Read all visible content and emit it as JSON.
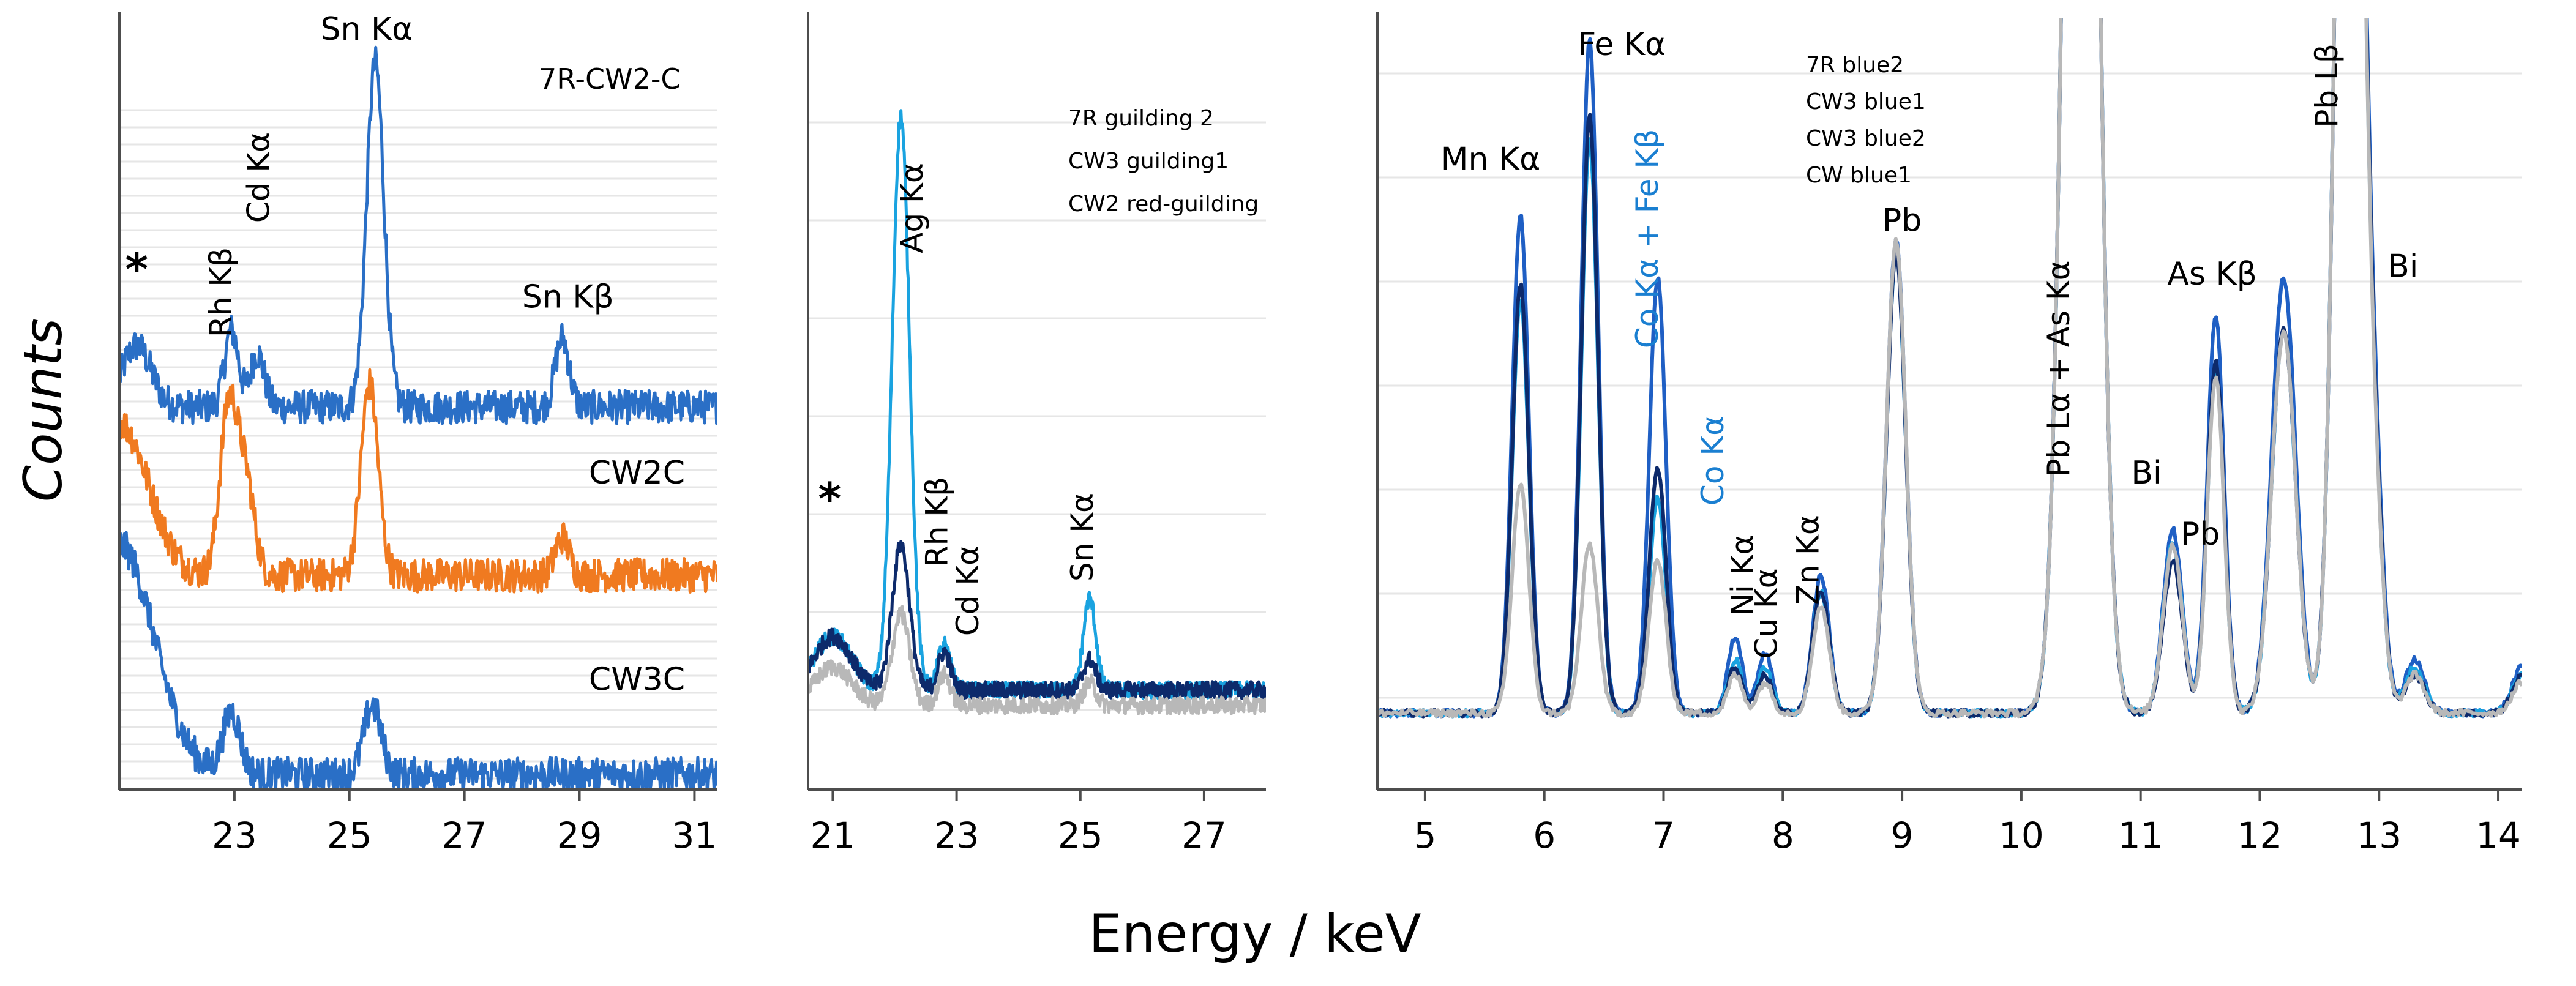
{
  "figure": {
    "ylabel": "Counts",
    "xlabel": "Energy / keV",
    "colors": {
      "blue": "#2a6fc6",
      "orange": "#f07a20",
      "navy": "#0d2a6b",
      "mid_blue": "#1f5fc4",
      "light_blue": "#1aa3e0",
      "grey": "#b8b8b8",
      "co_label": "#1a7fd1",
      "grid": "#e6e6e6",
      "axis": "#4d4d4d"
    }
  },
  "chart_data": [
    {
      "type": "line",
      "title": "7R-CW2-C",
      "xlabel": "",
      "ylabel": "Counts",
      "xlim": [
        21.0,
        31.4
      ],
      "ylim": [
        0,
        100
      ],
      "x_ticks": [
        23,
        25,
        27,
        29,
        31
      ],
      "grid": "horizontal",
      "legend": "none",
      "series": [
        {
          "name": "7R-CW2-C",
          "color": "blue",
          "baseline": 50,
          "peaks": [
            [
              21.3,
              8,
              0.25
            ],
            [
              22.95,
              10,
              0.12
            ],
            [
              23.4,
              7,
              0.12
            ],
            [
              25.45,
              45,
              0.15
            ],
            [
              28.7,
              9,
              0.12
            ]
          ]
        },
        {
          "name": "CW2C",
          "color": "orange",
          "baseline": 28,
          "peaks": [
            [
              21.0,
              20,
              0.5
            ],
            [
              22.9,
              22,
              0.15
            ],
            [
              23.2,
              12,
              0.15
            ],
            [
              25.35,
              25,
              0.15
            ],
            [
              28.7,
              5,
              0.12
            ]
          ]
        },
        {
          "name": "CW3C",
          "color": "blue",
          "baseline": 2,
          "peaks": [
            [
              21.0,
              30,
              0.6
            ],
            [
              22.95,
              8,
              0.15
            ],
            [
              25.4,
              9,
              0.15
            ]
          ]
        }
      ],
      "annotations": [
        {
          "text": "Sn Kα",
          "x": 25.3,
          "y": 98
        },
        {
          "text": "Cd Kα",
          "x": 23.6,
          "y": 80,
          "rotate": true
        },
        {
          "text": "Rh Kβ",
          "x": 22.95,
          "y": 65,
          "rotate": true
        },
        {
          "text": "Sn Kβ",
          "x": 28.8,
          "y": 63
        },
        {
          "text": "*",
          "x": 21.3,
          "y": 66
        },
        {
          "text": "CW2C",
          "x": 30.0,
          "y": 40
        },
        {
          "text": "CW3C",
          "x": 30.0,
          "y": 13
        }
      ]
    },
    {
      "type": "line",
      "title": "",
      "xlabel": "",
      "ylabel": "",
      "xlim": [
        20.6,
        28.0
      ],
      "ylim": [
        0,
        100
      ],
      "x_ticks": [
        21,
        23,
        25,
        27
      ],
      "grid": "horizontal",
      "legend": "top-right",
      "legend_items": [
        "7R guilding 2",
        "CW3 guilding1",
        "CW2 red-guilding"
      ],
      "series": [
        {
          "name": "7R guilding 2",
          "color": "light_blue",
          "baseline": 13,
          "peaks": [
            [
              21.0,
              7,
              0.3
            ],
            [
              22.1,
              75,
              0.14
            ],
            [
              22.8,
              6,
              0.1
            ],
            [
              25.15,
              12,
              0.1
            ]
          ]
        },
        {
          "name": "CW3 guilding1",
          "color": "navy",
          "baseline": 13,
          "peaks": [
            [
              21.0,
              7,
              0.3
            ],
            [
              22.1,
              19,
              0.14
            ],
            [
              22.8,
              5,
              0.1
            ],
            [
              25.15,
              4,
              0.1
            ]
          ]
        },
        {
          "name": "CW2 red-guilding",
          "color": "grey",
          "baseline": 11,
          "peaks": [
            [
              21.0,
              5,
              0.3
            ],
            [
              22.1,
              12,
              0.14
            ],
            [
              22.8,
              4,
              0.1
            ],
            [
              25.15,
              3,
              0.1
            ]
          ]
        }
      ],
      "annotations": [
        {
          "text": "Ag Kα",
          "x": 22.45,
          "y": 76,
          "rotate": true
        },
        {
          "text": "Rh Kβ",
          "x": 22.85,
          "y": 35,
          "rotate": true
        },
        {
          "text": "Cd Kα",
          "x": 23.35,
          "y": 26,
          "rotate": true
        },
        {
          "text": "Sn Kα",
          "x": 25.2,
          "y": 33,
          "rotate": true
        },
        {
          "text": "*",
          "x": 20.95,
          "y": 36
        }
      ]
    },
    {
      "type": "line",
      "title": "",
      "xlabel": "Energy / keV",
      "ylabel": "",
      "xlim": [
        4.6,
        14.2
      ],
      "ylim": [
        0,
        100
      ],
      "x_ticks": [
        5,
        6,
        7,
        8,
        9,
        10,
        11,
        12,
        13,
        14
      ],
      "grid": "horizontal",
      "legend": "top-center",
      "legend_items": [
        "7R blue2",
        "CW3 blue1",
        "CW3 blue2",
        "CW blue1"
      ],
      "series": [
        {
          "name": "7R blue2",
          "color": "mid_blue",
          "baseline": 10,
          "peaks": [
            [
              5.8,
              65,
              0.07
            ],
            [
              6.38,
              88,
              0.07
            ],
            [
              6.95,
              57,
              0.07
            ],
            [
              7.6,
              10,
              0.06
            ],
            [
              7.85,
              8,
              0.06
            ],
            [
              8.32,
              18,
              0.07
            ],
            [
              8.95,
              62,
              0.08
            ],
            [
              10.5,
              240,
              0.12
            ],
            [
              11.27,
              24,
              0.08
            ],
            [
              11.63,
              52,
              0.07
            ],
            [
              12.2,
              57,
              0.1
            ],
            [
              12.75,
              200,
              0.1
            ],
            [
              12.95,
              30,
              0.08
            ],
            [
              13.3,
              7,
              0.08
            ],
            [
              14.2,
              6,
              0.08
            ]
          ]
        },
        {
          "name": "CW3 blue1",
          "color": "light_blue",
          "baseline": 10,
          "peaks": [
            [
              5.8,
              54,
              0.07
            ],
            [
              6.38,
              75,
              0.07
            ],
            [
              6.95,
              28,
              0.07
            ],
            [
              7.6,
              7,
              0.06
            ],
            [
              7.85,
              6,
              0.06
            ],
            [
              8.32,
              16,
              0.07
            ],
            [
              8.95,
              60,
              0.08
            ],
            [
              10.5,
              240,
              0.12
            ],
            [
              11.27,
              22,
              0.08
            ],
            [
              11.63,
              45,
              0.07
            ],
            [
              12.2,
              50,
              0.1
            ],
            [
              12.75,
              200,
              0.1
            ],
            [
              12.95,
              25,
              0.08
            ],
            [
              13.3,
              6,
              0.08
            ],
            [
              14.2,
              5,
              0.08
            ]
          ]
        },
        {
          "name": "CW3 blue2",
          "color": "navy",
          "baseline": 10,
          "peaks": [
            [
              5.8,
              56,
              0.07
            ],
            [
              6.38,
              78,
              0.07
            ],
            [
              6.95,
              32,
              0.07
            ],
            [
              7.6,
              6,
              0.06
            ],
            [
              7.85,
              5,
              0.06
            ],
            [
              8.32,
              16,
              0.07
            ],
            [
              8.95,
              60,
              0.08
            ],
            [
              10.5,
              240,
              0.12
            ],
            [
              11.27,
              20,
              0.08
            ],
            [
              11.63,
              46,
              0.07
            ],
            [
              12.2,
              50,
              0.1
            ],
            [
              12.75,
              200,
              0.1
            ],
            [
              12.95,
              26,
              0.08
            ],
            [
              13.3,
              5,
              0.08
            ],
            [
              14.2,
              5,
              0.08
            ]
          ]
        },
        {
          "name": "CW blue1",
          "color": "grey",
          "baseline": 10,
          "peaks": [
            [
              5.8,
              30,
              0.07
            ],
            [
              6.38,
              22,
              0.07
            ],
            [
              6.95,
              20,
              0.07
            ],
            [
              7.6,
              5,
              0.06
            ],
            [
              7.85,
              4,
              0.06
            ],
            [
              8.32,
              14,
              0.07
            ],
            [
              8.95,
              62,
              0.08
            ],
            [
              10.5,
              240,
              0.12
            ],
            [
              11.27,
              22,
              0.08
            ],
            [
              11.63,
              44,
              0.07
            ],
            [
              12.2,
              50,
              0.1
            ],
            [
              12.75,
              200,
              0.1
            ],
            [
              12.95,
              24,
              0.08
            ],
            [
              13.3,
              5,
              0.08
            ],
            [
              14.2,
              4,
              0.08
            ]
          ]
        }
      ],
      "annotations": [
        {
          "text": "Mn Kα",
          "x": 5.55,
          "y": 81
        },
        {
          "text": "Fe Kα",
          "x": 6.65,
          "y": 96
        },
        {
          "text": "Co Kα + Fe Kβ",
          "x": 6.95,
          "y": 72,
          "rotate": true,
          "color": "co_label"
        },
        {
          "text": "Co Kα",
          "x": 7.5,
          "y": 43,
          "rotate": true,
          "color": "co_label"
        },
        {
          "text": "Ni Kα",
          "x": 7.75,
          "y": 28,
          "rotate": true
        },
        {
          "text": "Cu Kα",
          "x": 7.95,
          "y": 23,
          "rotate": true
        },
        {
          "text": "Zn Kα",
          "x": 8.3,
          "y": 30,
          "rotate": true
        },
        {
          "text": "Pb",
          "x": 9.0,
          "y": 73
        },
        {
          "text": "Pb Lα + As Kα",
          "x": 10.4,
          "y": 55,
          "rotate": true
        },
        {
          "text": "Bi",
          "x": 11.05,
          "y": 40
        },
        {
          "text": "Pb",
          "x": 11.5,
          "y": 32
        },
        {
          "text": "As Kβ",
          "x": 11.6,
          "y": 66
        },
        {
          "text": "Pb Lβ",
          "x": 12.65,
          "y": 92,
          "rotate": true
        },
        {
          "text": "Bi",
          "x": 13.2,
          "y": 67
        }
      ]
    }
  ]
}
